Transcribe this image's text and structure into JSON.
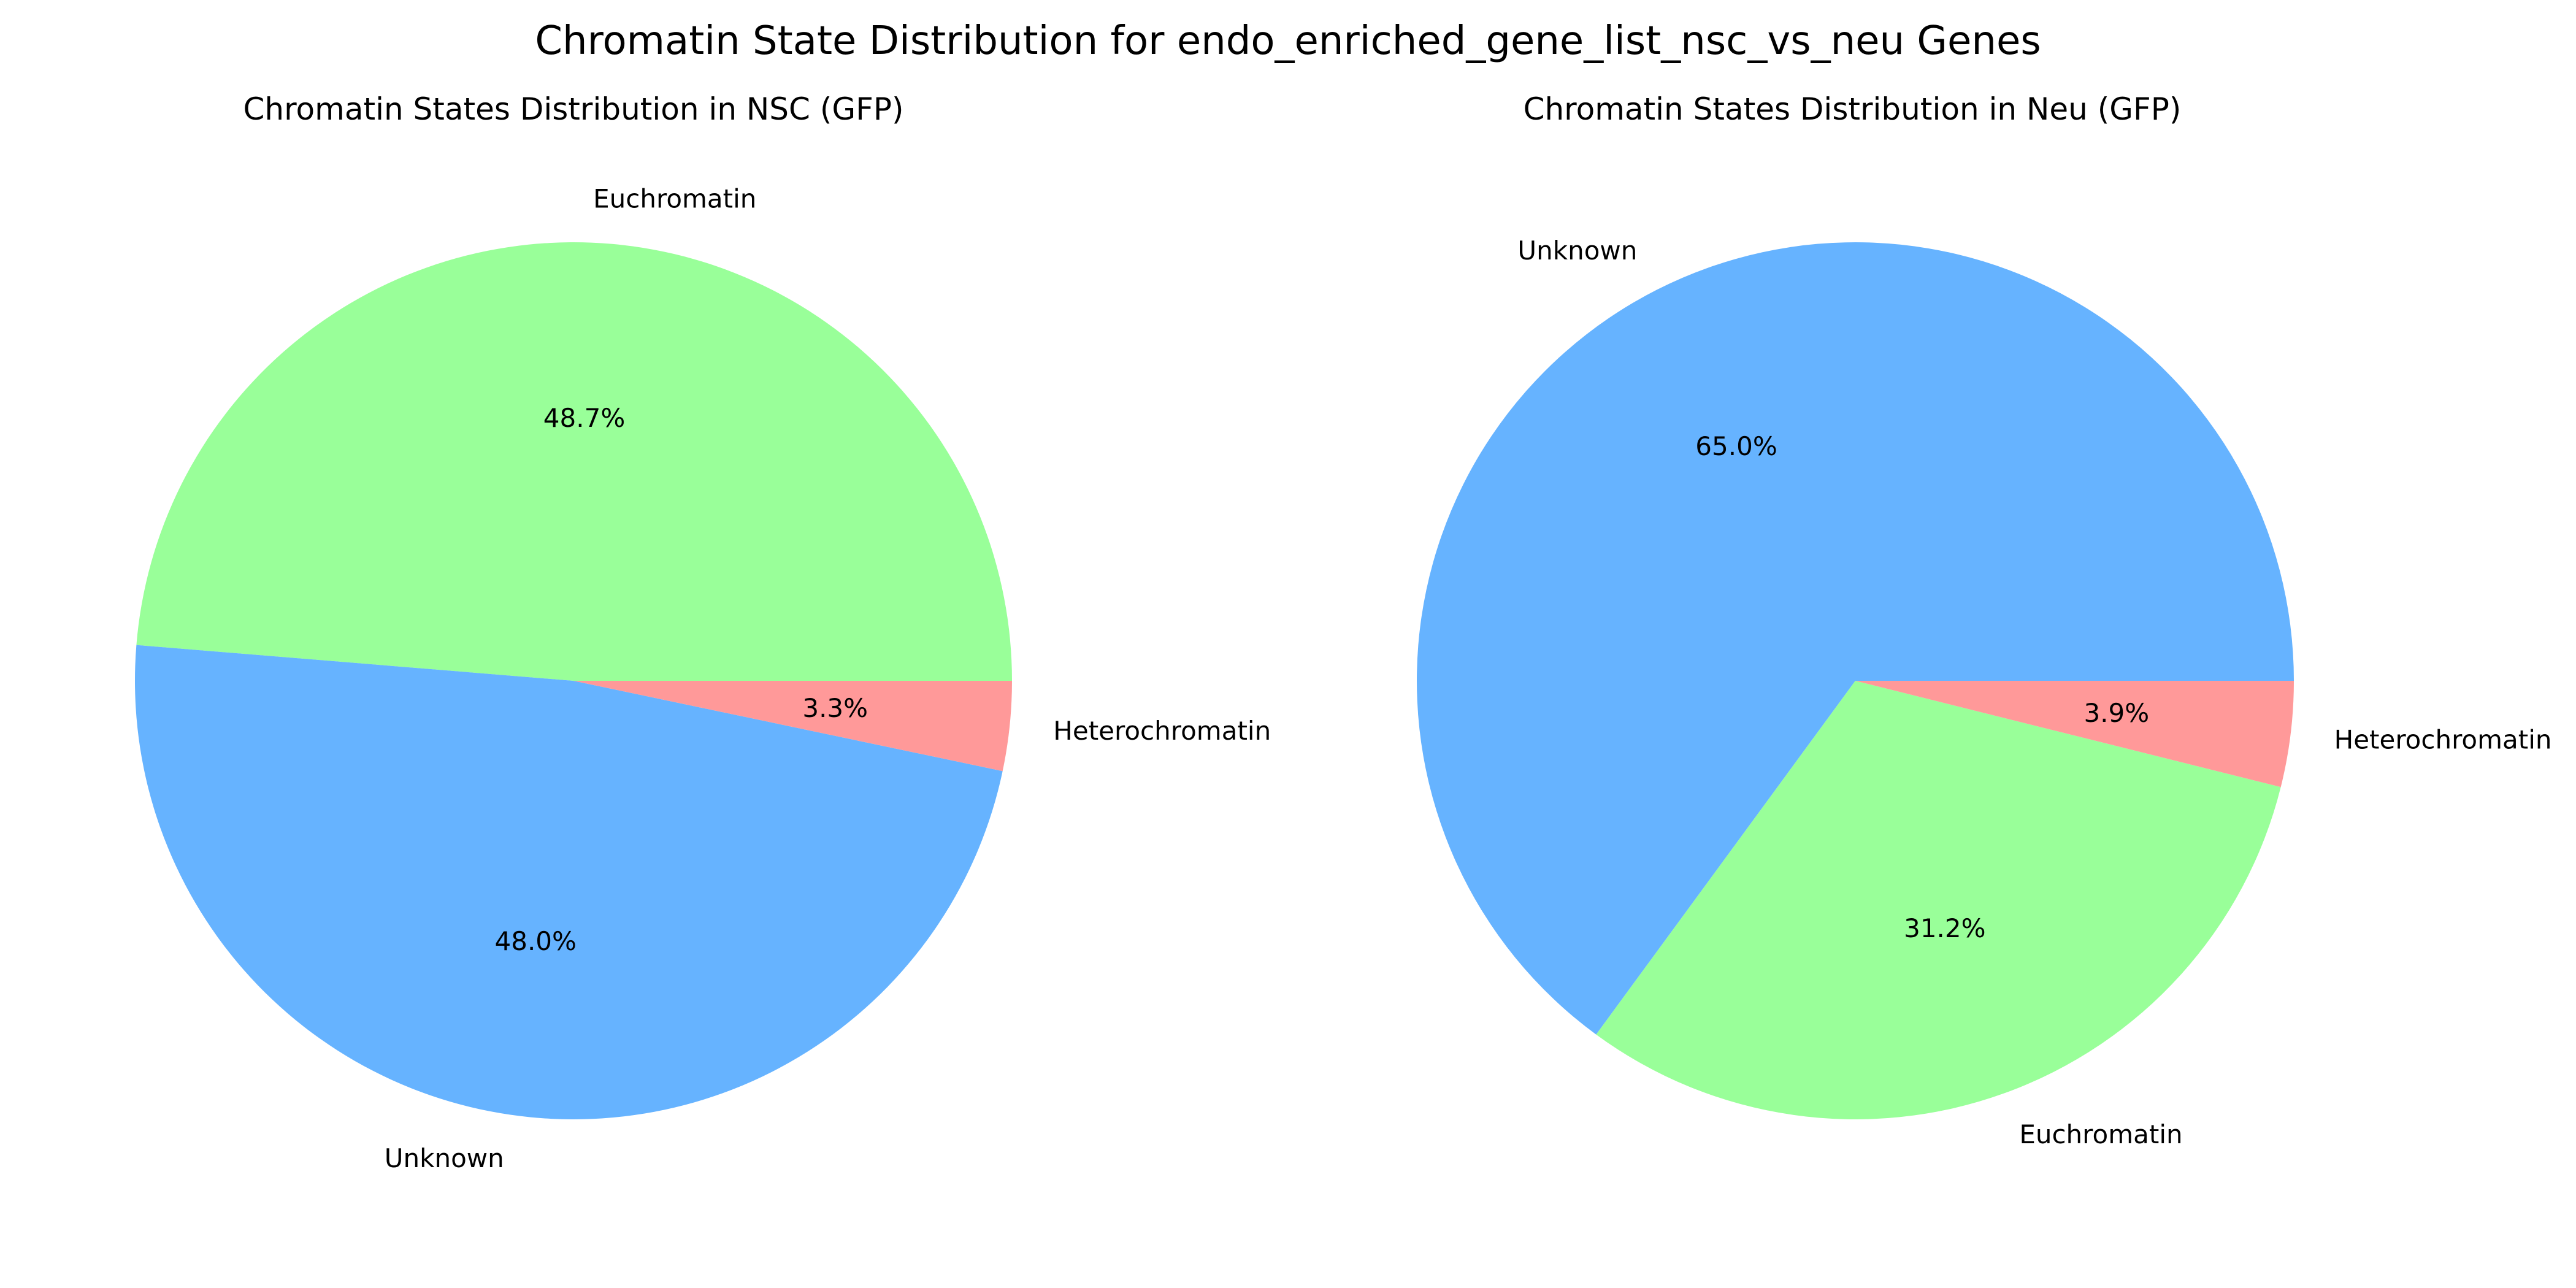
{
  "figure": {
    "title": "Chromatin State Distribution for endo_enriched_gene_list_nsc_vs_neu Genes"
  },
  "chart_data": [
    {
      "type": "pie",
      "title": "Chromatin States Distribution in NSC (GFP)",
      "start_angle_deg": 0,
      "direction": "counterclockwise",
      "slices": [
        {
          "label": "Euchromatin",
          "value": 48.7,
          "pct_text": "48.7%",
          "color": "#99ff99"
        },
        {
          "label": "Unknown",
          "value": 48.0,
          "pct_text": "48.0%",
          "color": "#66b3ff"
        },
        {
          "label": "Heterochromatin",
          "value": 3.3,
          "pct_text": "3.3%",
          "color": "#ff9999"
        }
      ]
    },
    {
      "type": "pie",
      "title": "Chromatin States Distribution in Neu (GFP)",
      "start_angle_deg": 0,
      "direction": "counterclockwise",
      "slices": [
        {
          "label": "Unknown",
          "value": 65.0,
          "pct_text": "65.0%",
          "color": "#66b3ff"
        },
        {
          "label": "Euchromatin",
          "value": 31.2,
          "pct_text": "31.2%",
          "color": "#99ff99"
        },
        {
          "label": "Heterochromatin",
          "value": 3.9,
          "pct_text": "3.9%",
          "color": "#ff9999"
        }
      ]
    }
  ]
}
